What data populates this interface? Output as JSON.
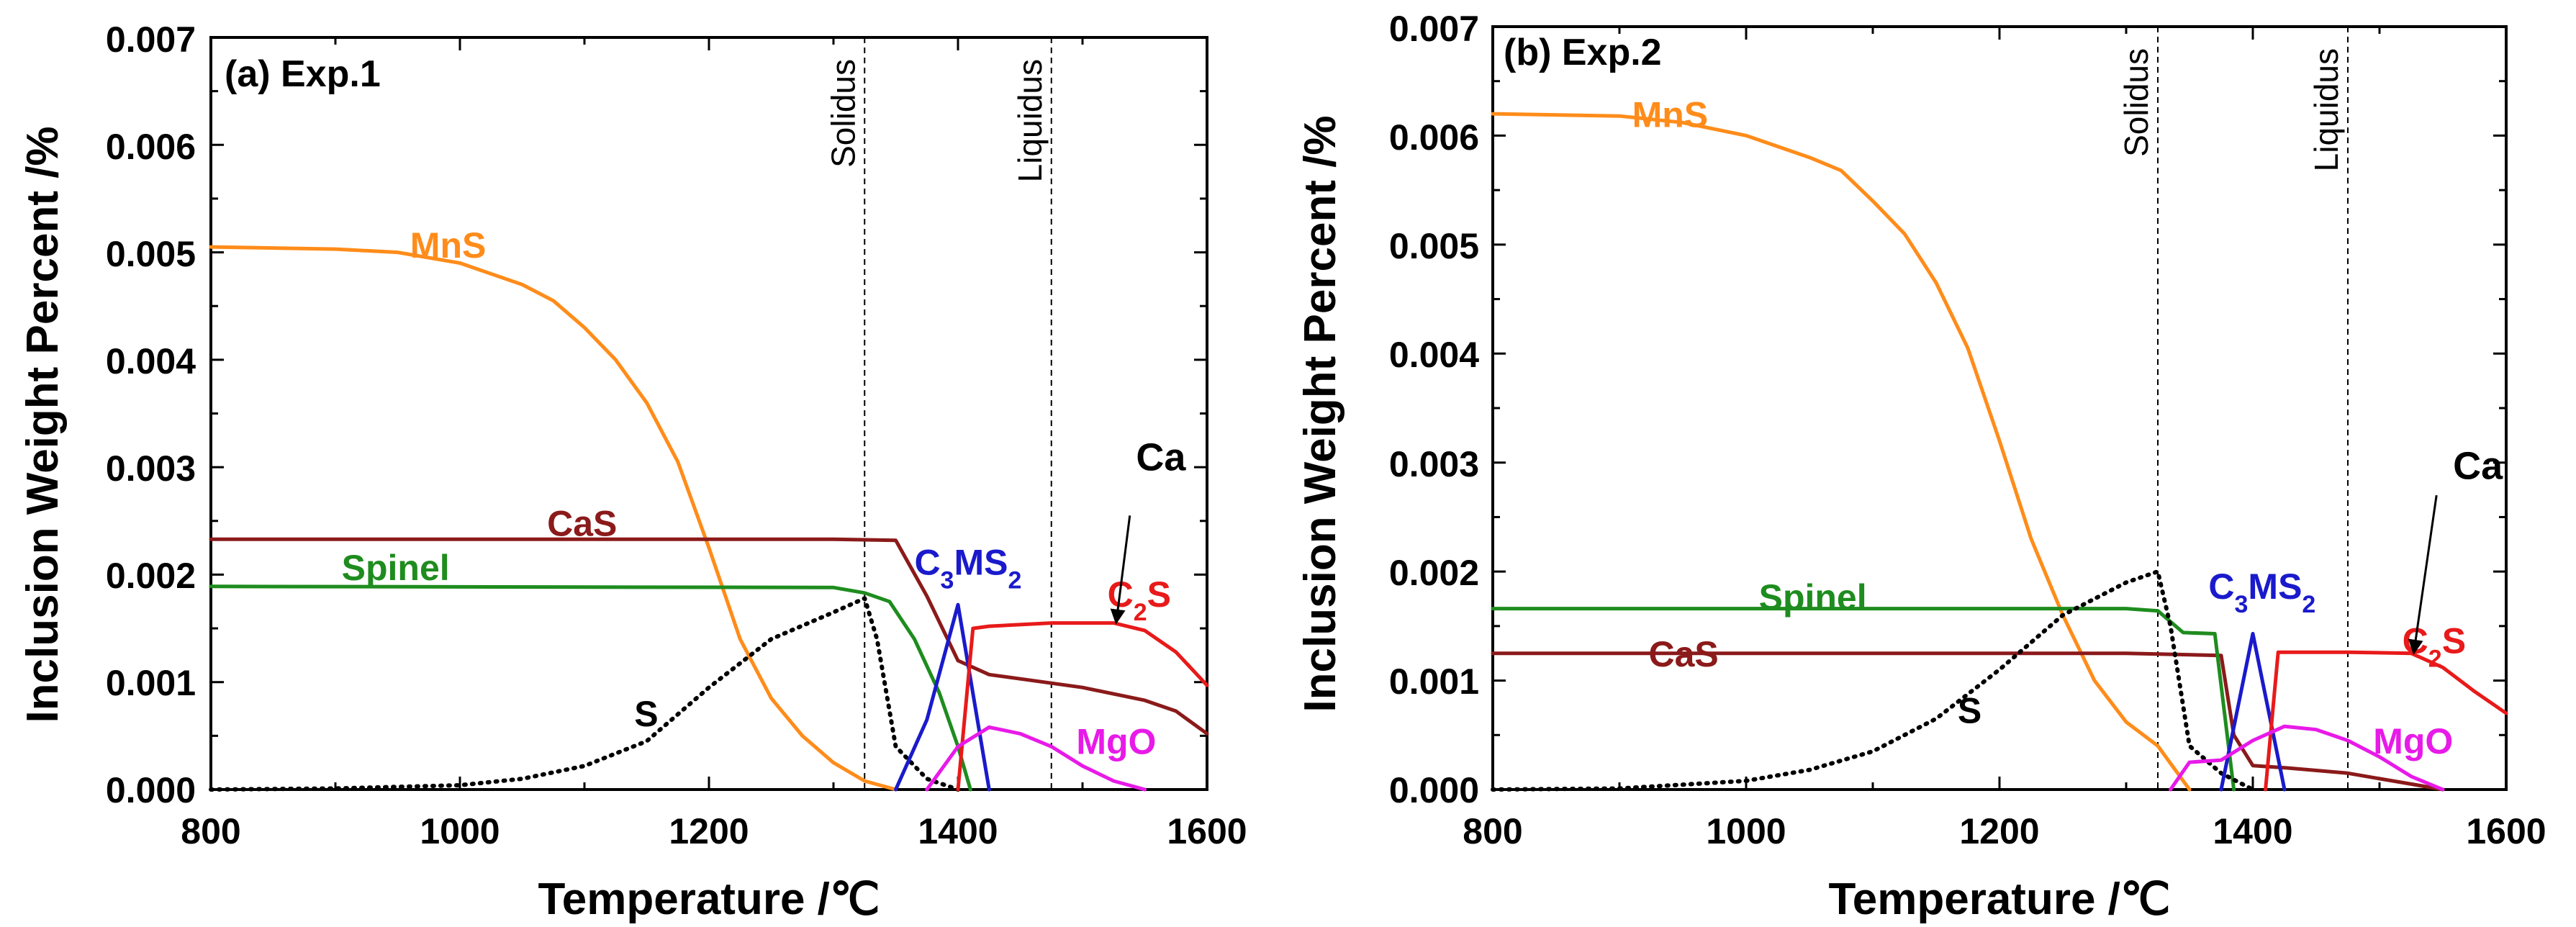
{
  "chart_data": [
    {
      "type": "line",
      "panel": "a",
      "title": "(a) Exp.1",
      "xlabel": "Temperature /℃",
      "ylabel": "Inclusion Weight Percent /%",
      "xlim": [
        800,
        1600
      ],
      "ylim": [
        0,
        0.007
      ],
      "xticks": [
        "800",
        "1000",
        "1200",
        "1400",
        "1600"
      ],
      "yticks": [
        "0.000",
        "0.001",
        "0.002",
        "0.003",
        "0.004",
        "0.005",
        "0.006",
        "0.007"
      ],
      "vlines": [
        {
          "x": 1325,
          "label": "Solidus"
        },
        {
          "x": 1475,
          "label": "Liquidus"
        }
      ],
      "series": [
        {
          "name": "MnS",
          "color": "#FF8C1A",
          "style": "solid",
          "label_text": "MnS",
          "label_at": [
            960,
            0.00495
          ],
          "x": [
            800,
            900,
            950,
            1000,
            1050,
            1075,
            1100,
            1125,
            1150,
            1175,
            1200,
            1225,
            1250,
            1275,
            1300,
            1325,
            1350
          ],
          "y": [
            0.00505,
            0.00503,
            0.005,
            0.0049,
            0.0047,
            0.00455,
            0.0043,
            0.004,
            0.0036,
            0.00305,
            0.00225,
            0.0014,
            0.00085,
            0.0005,
            0.00025,
            8e-05,
            0.0
          ]
        },
        {
          "name": "CaS",
          "color": "#8B1A1A",
          "style": "solid",
          "label_text": "CaS",
          "label_at": [
            1070,
            0.00236
          ],
          "x": [
            800,
            1300,
            1350,
            1375,
            1400,
            1425,
            1450,
            1500,
            1550,
            1575,
            1600
          ],
          "y": [
            0.00233,
            0.00233,
            0.00232,
            0.0018,
            0.0012,
            0.00107,
            0.00103,
            0.00095,
            0.00083,
            0.00073,
            0.00052
          ]
        },
        {
          "name": "Spinel",
          "color": "#1E8C1E",
          "style": "solid",
          "label_text": "Spinel",
          "label_at": [
            905,
            0.00195
          ],
          "x": [
            800,
            1300,
            1325,
            1345,
            1365,
            1385,
            1400,
            1410
          ],
          "y": [
            0.00189,
            0.00188,
            0.00183,
            0.00175,
            0.0014,
            0.0009,
            0.0004,
            0.0
          ]
        },
        {
          "name": "S",
          "color": "#000000",
          "style": "dotted",
          "label_text": "S",
          "label_at": [
            1140,
            0.00059
          ],
          "x": [
            800,
            900,
            1000,
            1050,
            1100,
            1150,
            1200,
            1250,
            1300,
            1325,
            1335,
            1350,
            1375,
            1400
          ],
          "y": [
            0.0,
            1e-05,
            4e-05,
            0.0001,
            0.00022,
            0.00045,
            0.00095,
            0.0014,
            0.00165,
            0.00178,
            0.0014,
            0.0004,
            0.0001,
            0.0
          ]
        },
        {
          "name": "C3MS2",
          "color": "#1A1ACC",
          "style": "solid",
          "label_text": "C3MS2",
          "label_at": [
            1365,
            0.002
          ],
          "x": [
            1350,
            1375,
            1400,
            1425
          ],
          "y": [
            0.0,
            0.00065,
            0.00172,
            0.0
          ]
        },
        {
          "name": "C2S",
          "color": "#E81A1A",
          "style": "solid",
          "label_text": "C2S",
          "label_at": [
            1520,
            0.0017
          ],
          "x": [
            1400,
            1412,
            1425,
            1475,
            1525,
            1550,
            1575,
            1600
          ],
          "y": [
            0.0,
            0.0015,
            0.00152,
            0.00155,
            0.00155,
            0.00148,
            0.00128,
            0.00097
          ]
        },
        {
          "name": "MgO",
          "color": "#E81AE8",
          "style": "solid",
          "label_text": "MgO",
          "label_at": [
            1495,
            0.00033
          ],
          "x": [
            1375,
            1400,
            1425,
            1450,
            1475,
            1500,
            1525,
            1550
          ],
          "y": [
            0.0,
            0.0004,
            0.00058,
            0.00052,
            0.0004,
            0.00022,
            8e-05,
            0.0
          ]
        }
      ],
      "annotations": [
        {
          "text": "Ca",
          "text_at": [
            1543,
            0.00297
          ],
          "arrow_from": [
            1538,
            0.00255
          ],
          "arrow_to": [
            1527,
            0.00155
          ]
        }
      ]
    },
    {
      "type": "line",
      "panel": "b",
      "title": "(b) Exp.2",
      "xlabel": "Temperature /℃",
      "ylabel": "Inclusion Weight Percent /%",
      "xlim": [
        800,
        1600
      ],
      "ylim": [
        0,
        0.007
      ],
      "xticks": [
        "800",
        "1000",
        "1200",
        "1400",
        "1600"
      ],
      "yticks": [
        "0.000",
        "0.001",
        "0.002",
        "0.003",
        "0.004",
        "0.005",
        "0.006",
        "0.007"
      ],
      "vlines": [
        {
          "x": 1325,
          "label": "Solidus"
        },
        {
          "x": 1475,
          "label": "Liquidus"
        }
      ],
      "series": [
        {
          "name": "MnS",
          "color": "#FF8C1A",
          "style": "solid",
          "label_text": "MnS",
          "label_at": [
            910,
            0.00608
          ],
          "x": [
            800,
            900,
            950,
            1000,
            1050,
            1075,
            1100,
            1125,
            1150,
            1175,
            1200,
            1225,
            1250,
            1275,
            1300,
            1325,
            1350
          ],
          "y": [
            0.0062,
            0.00618,
            0.00612,
            0.006,
            0.0058,
            0.00568,
            0.0054,
            0.0051,
            0.00465,
            0.00405,
            0.0032,
            0.0023,
            0.0016,
            0.001,
            0.00062,
            0.0004,
            0.0
          ]
        },
        {
          "name": "CaS",
          "color": "#8B1A1A",
          "style": "solid",
          "label_text": "CaS",
          "label_at": [
            923,
            0.00113
          ],
          "x": [
            800,
            1300,
            1375,
            1385,
            1400,
            1425,
            1475,
            1500,
            1525,
            1550
          ],
          "y": [
            0.00125,
            0.00125,
            0.00123,
            0.0005,
            0.00022,
            0.0002,
            0.00015,
            0.0001,
            5e-05,
            0.0
          ]
        },
        {
          "name": "Spinel",
          "color": "#1E8C1E",
          "style": "solid",
          "label_text": "Spinel",
          "label_at": [
            1010,
            0.00165
          ],
          "x": [
            800,
            1300,
            1325,
            1345,
            1370,
            1385
          ],
          "y": [
            0.00166,
            0.00166,
            0.00164,
            0.00144,
            0.00143,
            0.0
          ]
        },
        {
          "name": "S",
          "color": "#000000",
          "style": "dotted",
          "label_text": "S",
          "label_at": [
            1167,
            0.00061
          ],
          "x": [
            800,
            900,
            1000,
            1050,
            1100,
            1150,
            1200,
            1250,
            1300,
            1325,
            1335,
            1350,
            1375,
            1400
          ],
          "y": [
            0.0,
            1e-05,
            8e-05,
            0.00018,
            0.00035,
            0.00065,
            0.0011,
            0.0016,
            0.0019,
            0.002,
            0.0015,
            0.0004,
            0.00015,
            0.0
          ]
        },
        {
          "name": "C3MS2",
          "color": "#1A1ACC",
          "style": "solid",
          "label_text": "C3MS2",
          "label_at": [
            1365,
            0.00175
          ],
          "x": [
            1375,
            1400,
            1425
          ],
          "y": [
            0.0,
            0.00143,
            0.0
          ]
        },
        {
          "name": "C2S",
          "color": "#E81A1A",
          "style": "solid",
          "label_text": "C2S",
          "label_at": [
            1518,
            0.00125
          ],
          "x": [
            1410,
            1420,
            1475,
            1525,
            1550,
            1575,
            1600
          ],
          "y": [
            0.0,
            0.00126,
            0.00126,
            0.00125,
            0.00112,
            0.0009,
            0.0007
          ]
        },
        {
          "name": "MgO",
          "color": "#E81AE8",
          "style": "solid",
          "label_text": "MgO",
          "label_at": [
            1495,
            0.00033
          ],
          "x": [
            1335,
            1350,
            1375,
            1400,
            1425,
            1450,
            1475,
            1500,
            1525,
            1550
          ],
          "y": [
            0.0,
            0.00025,
            0.00027,
            0.00045,
            0.00058,
            0.00055,
            0.00045,
            0.0003,
            0.00012,
            0.0
          ]
        }
      ],
      "annotations": [
        {
          "text": "Ca",
          "text_at": [
            1558,
            0.00285
          ],
          "arrow_from": [
            1545,
            0.0027
          ],
          "arrow_to": [
            1527,
            0.00125
          ]
        }
      ]
    }
  ]
}
